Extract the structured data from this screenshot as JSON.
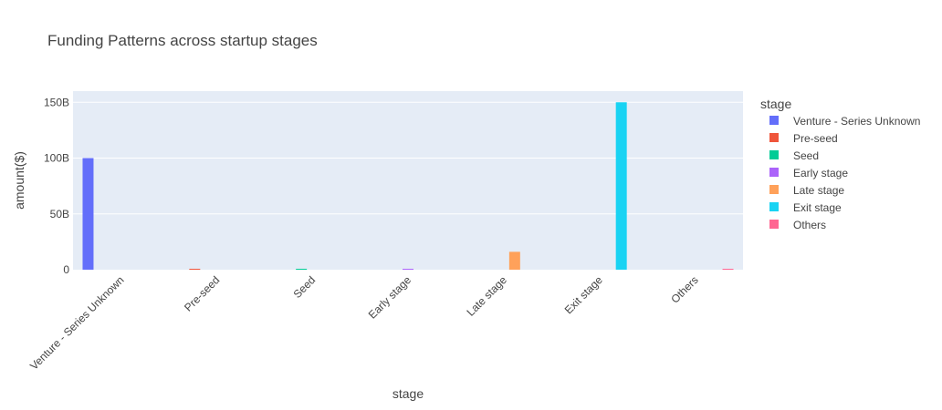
{
  "chart_data": {
    "type": "bar",
    "title": "Funding Patterns across startup stages",
    "xlabel": "stage",
    "ylabel": "amount($)",
    "ylim": [
      0,
      160000000000
    ],
    "yticks": [
      {
        "value": 0,
        "label": "0"
      },
      {
        "value": 50000000000,
        "label": "50B"
      },
      {
        "value": 100000000000,
        "label": "100B"
      },
      {
        "value": 150000000000,
        "label": "150B"
      }
    ],
    "grid": true,
    "categories": [
      "Venture - Series Unknown",
      "Pre-seed",
      "Seed",
      "Early stage",
      "Late stage",
      "Exit stage",
      "Others"
    ],
    "legend": {
      "title": "stage",
      "placement": "right"
    },
    "series": [
      {
        "name": "Venture - Series Unknown",
        "color": "#636efa",
        "values": [
          100000000000,
          0,
          0,
          0,
          0,
          0,
          0
        ]
      },
      {
        "name": "Pre-seed",
        "color": "#EF553B",
        "values": [
          0,
          300000000,
          0,
          0,
          0,
          0,
          0
        ]
      },
      {
        "name": "Seed",
        "color": "#00cc96",
        "values": [
          0,
          0,
          500000000,
          0,
          0,
          0,
          0
        ]
      },
      {
        "name": "Early stage",
        "color": "#ab63fa",
        "values": [
          0,
          0,
          0,
          600000000,
          0,
          0,
          0
        ]
      },
      {
        "name": "Late stage",
        "color": "#FFA15A",
        "values": [
          0,
          0,
          0,
          0,
          16000000000,
          0,
          0
        ]
      },
      {
        "name": "Exit stage",
        "color": "#19d3f3",
        "values": [
          0,
          0,
          0,
          0,
          0,
          150000000000,
          0
        ]
      },
      {
        "name": "Others",
        "color": "#FF6692",
        "values": [
          0,
          0,
          0,
          0,
          0,
          0,
          800000000
        ]
      }
    ]
  }
}
